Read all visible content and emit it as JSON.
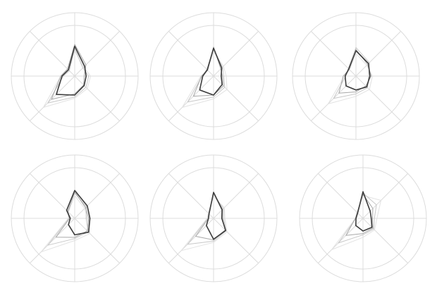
{
  "chart_data": [
    {
      "type": "radar",
      "ylim": [
        0,
        100
      ],
      "yticks": [
        80,
        100
      ],
      "grid": true,
      "series": [
        {
          "color": "#e2e2e2",
          "values": [
            40,
            20,
            25,
            28,
            35,
            70,
            22,
            15
          ]
        },
        {
          "color": "#c8c8c8",
          "values": [
            44,
            18,
            22,
            25,
            33,
            60,
            18,
            12
          ]
        },
        {
          "color": "#a8a8a8",
          "values": [
            50,
            25,
            15,
            20,
            28,
            52,
            22,
            16
          ]
        },
        {
          "color": "#3c3c3c",
          "values": [
            47,
            22,
            18,
            21,
            30,
            41,
            20,
            14
          ]
        }
      ]
    },
    {
      "type": "radar",
      "ylim": [
        0,
        100
      ],
      "yticks": [
        80,
        100
      ],
      "grid": true,
      "series": [
        {
          "color": "#e2e2e2",
          "values": [
            38,
            22,
            20,
            30,
            36,
            70,
            20,
            14
          ]
        },
        {
          "color": "#c8c8c8",
          "values": [
            42,
            20,
            16,
            25,
            33,
            58,
            18,
            15
          ]
        },
        {
          "color": "#a8a8a8",
          "values": [
            46,
            16,
            14,
            22,
            30,
            45,
            19,
            13
          ]
        },
        {
          "color": "#3c3c3c",
          "values": [
            44,
            18,
            12,
            19,
            30,
            31,
            17,
            14
          ]
        }
      ]
    },
    {
      "type": "radar",
      "ylim": [
        0,
        100
      ],
      "yticks": [
        80,
        100
      ],
      "grid": true,
      "series": [
        {
          "color": "#e2e2e2",
          "values": [
            36,
            24,
            26,
            30,
            32,
            62,
            18,
            14
          ]
        },
        {
          "color": "#c8c8c8",
          "values": [
            45,
            30,
            20,
            26,
            28,
            50,
            16,
            17
          ]
        },
        {
          "color": "#a8a8a8",
          "values": [
            42,
            26,
            24,
            22,
            25,
            38,
            20,
            15
          ]
        },
        {
          "color": "#3c3c3c",
          "values": [
            40,
            28,
            22,
            24,
            22,
            22,
            17,
            16
          ]
        }
      ]
    },
    {
      "type": "radar",
      "ylim": [
        0,
        100
      ],
      "yticks": [
        80,
        100
      ],
      "grid": true,
      "series": [
        {
          "color": "#e2e2e2",
          "values": [
            36,
            22,
            20,
            34,
            35,
            75,
            10,
            14
          ]
        },
        {
          "color": "#c8c8c8",
          "values": [
            40,
            26,
            18,
            30,
            32,
            60,
            9,
            16
          ]
        },
        {
          "color": "#a8a8a8",
          "values": [
            42,
            24,
            22,
            28,
            30,
            42,
            8,
            15
          ]
        },
        {
          "color": "#3c3c3c",
          "values": [
            44,
            28,
            24,
            31,
            26,
            14,
            7,
            18
          ]
        }
      ]
    },
    {
      "type": "radar",
      "ylim": [
        0,
        100
      ],
      "yticks": [
        80,
        100
      ],
      "grid": true,
      "series": [
        {
          "color": "#e2e2e2",
          "values": [
            34,
            24,
            18,
            30,
            38,
            72,
            10,
            12
          ]
        },
        {
          "color": "#c8c8c8",
          "values": [
            38,
            22,
            16,
            28,
            36,
            58,
            9,
            11
          ]
        },
        {
          "color": "#a8a8a8",
          "values": [
            40,
            20,
            14,
            26,
            34,
            40,
            8,
            10
          ]
        },
        {
          "color": "#3c3c3c",
          "values": [
            41,
            19,
            13,
            27,
            33,
            16,
            8,
            10
          ]
        }
      ]
    },
    {
      "type": "radar",
      "ylim": [
        0,
        100
      ],
      "yticks": [
        80,
        100
      ],
      "grid": true,
      "series": [
        {
          "color": "#e2e2e2",
          "values": [
            36,
            40,
            22,
            26,
            30,
            70,
            12,
            12
          ]
        },
        {
          "color": "#c8c8c8",
          "values": [
            40,
            30,
            18,
            24,
            26,
            55,
            11,
            12
          ]
        },
        {
          "color": "#a8a8a8",
          "values": [
            38,
            22,
            15,
            22,
            24,
            38,
            12,
            13
          ]
        },
        {
          "color": "#3c3c3c",
          "values": [
            42,
            16,
            13,
            20,
            20,
            16,
            11,
            12
          ]
        }
      ]
    }
  ]
}
